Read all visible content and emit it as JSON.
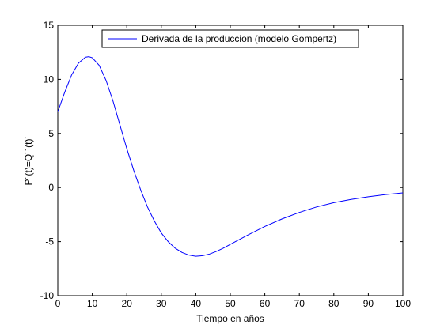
{
  "chart_data": {
    "type": "line",
    "xlabel": "Tiempo en años",
    "ylabel": "P´(t)=Q´´(t)´",
    "x": [
      0,
      2,
      4,
      6,
      8,
      9,
      10,
      12,
      14,
      16,
      18,
      20,
      22,
      24,
      26,
      28,
      30,
      32,
      34,
      36,
      38,
      40,
      42,
      44,
      46,
      48,
      50,
      55,
      60,
      65,
      70,
      75,
      80,
      85,
      90,
      95,
      100
    ],
    "series": [
      {
        "name": "Derivada de la produccion (modelo Gompertz)",
        "color": "#0000ff",
        "values": [
          7,
          8.8,
          10.4,
          11.5,
          12.05,
          12.1,
          12.0,
          11.3,
          9.9,
          8.0,
          5.8,
          3.6,
          1.6,
          -0.2,
          -1.8,
          -3.1,
          -4.2,
          -5.0,
          -5.6,
          -6.0,
          -6.25,
          -6.35,
          -6.3,
          -6.15,
          -5.9,
          -5.6,
          -5.25,
          -4.4,
          -3.6,
          -2.9,
          -2.3,
          -1.8,
          -1.4,
          -1.1,
          -0.85,
          -0.65,
          -0.5
        ]
      }
    ],
    "xlim": [
      0,
      100
    ],
    "xticks": [
      0,
      10,
      20,
      30,
      40,
      50,
      60,
      70,
      80,
      90,
      100
    ],
    "ylim": [
      -10,
      15
    ],
    "yticks": [
      -10,
      -5,
      0,
      5,
      10,
      15
    ],
    "legend": "north"
  }
}
